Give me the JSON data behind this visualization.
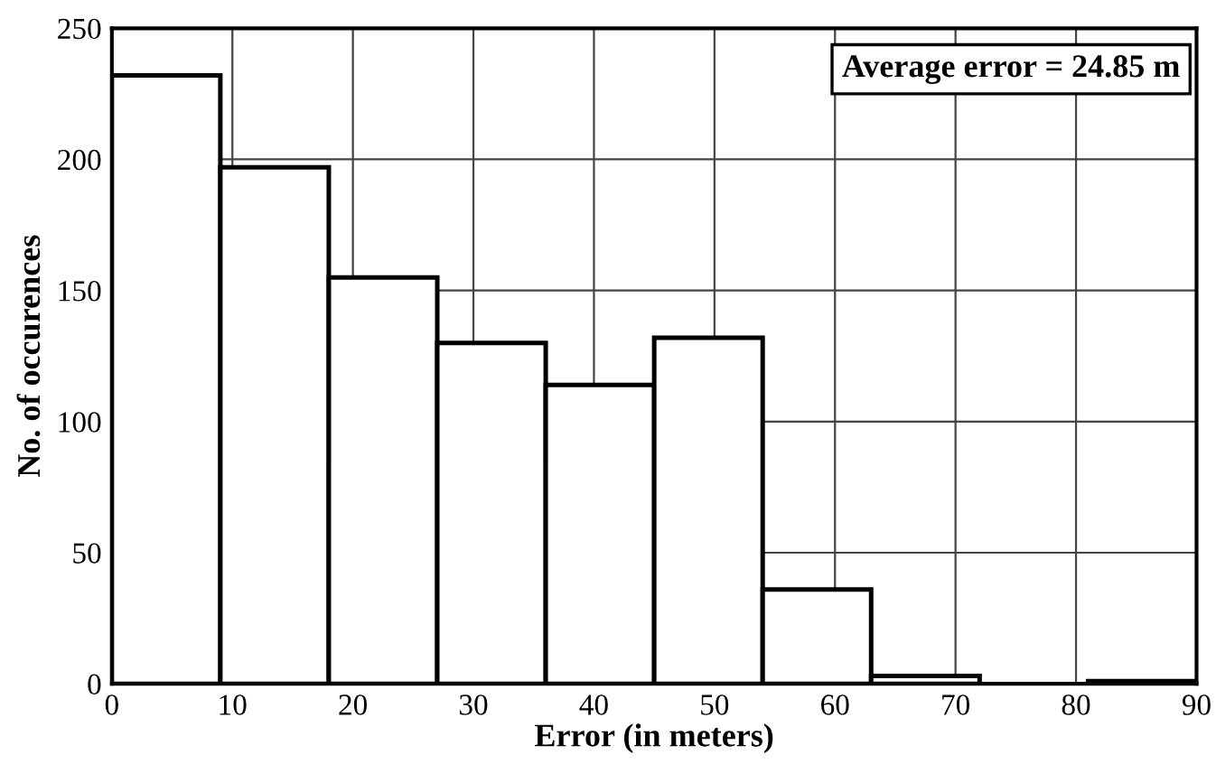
{
  "chart_data": {
    "type": "histogram",
    "bins": [
      0,
      9,
      18,
      27,
      36,
      45,
      54,
      63,
      72,
      81,
      90
    ],
    "values": [
      232,
      197,
      155,
      130,
      114,
      132,
      36,
      3,
      0,
      1
    ],
    "color": "#ffffff",
    "xlabel": "Error (in meters)",
    "ylabel": "No. of occurences",
    "xlim": [
      0,
      90
    ],
    "xticks": [
      0,
      10,
      20,
      30,
      40,
      50,
      60,
      70,
      80,
      90
    ],
    "ylim": [
      0,
      250
    ],
    "yticks": [
      0,
      50,
      100,
      150,
      200,
      250
    ],
    "grid": true,
    "annotations": [
      "Average error = 24.85 m"
    ]
  }
}
